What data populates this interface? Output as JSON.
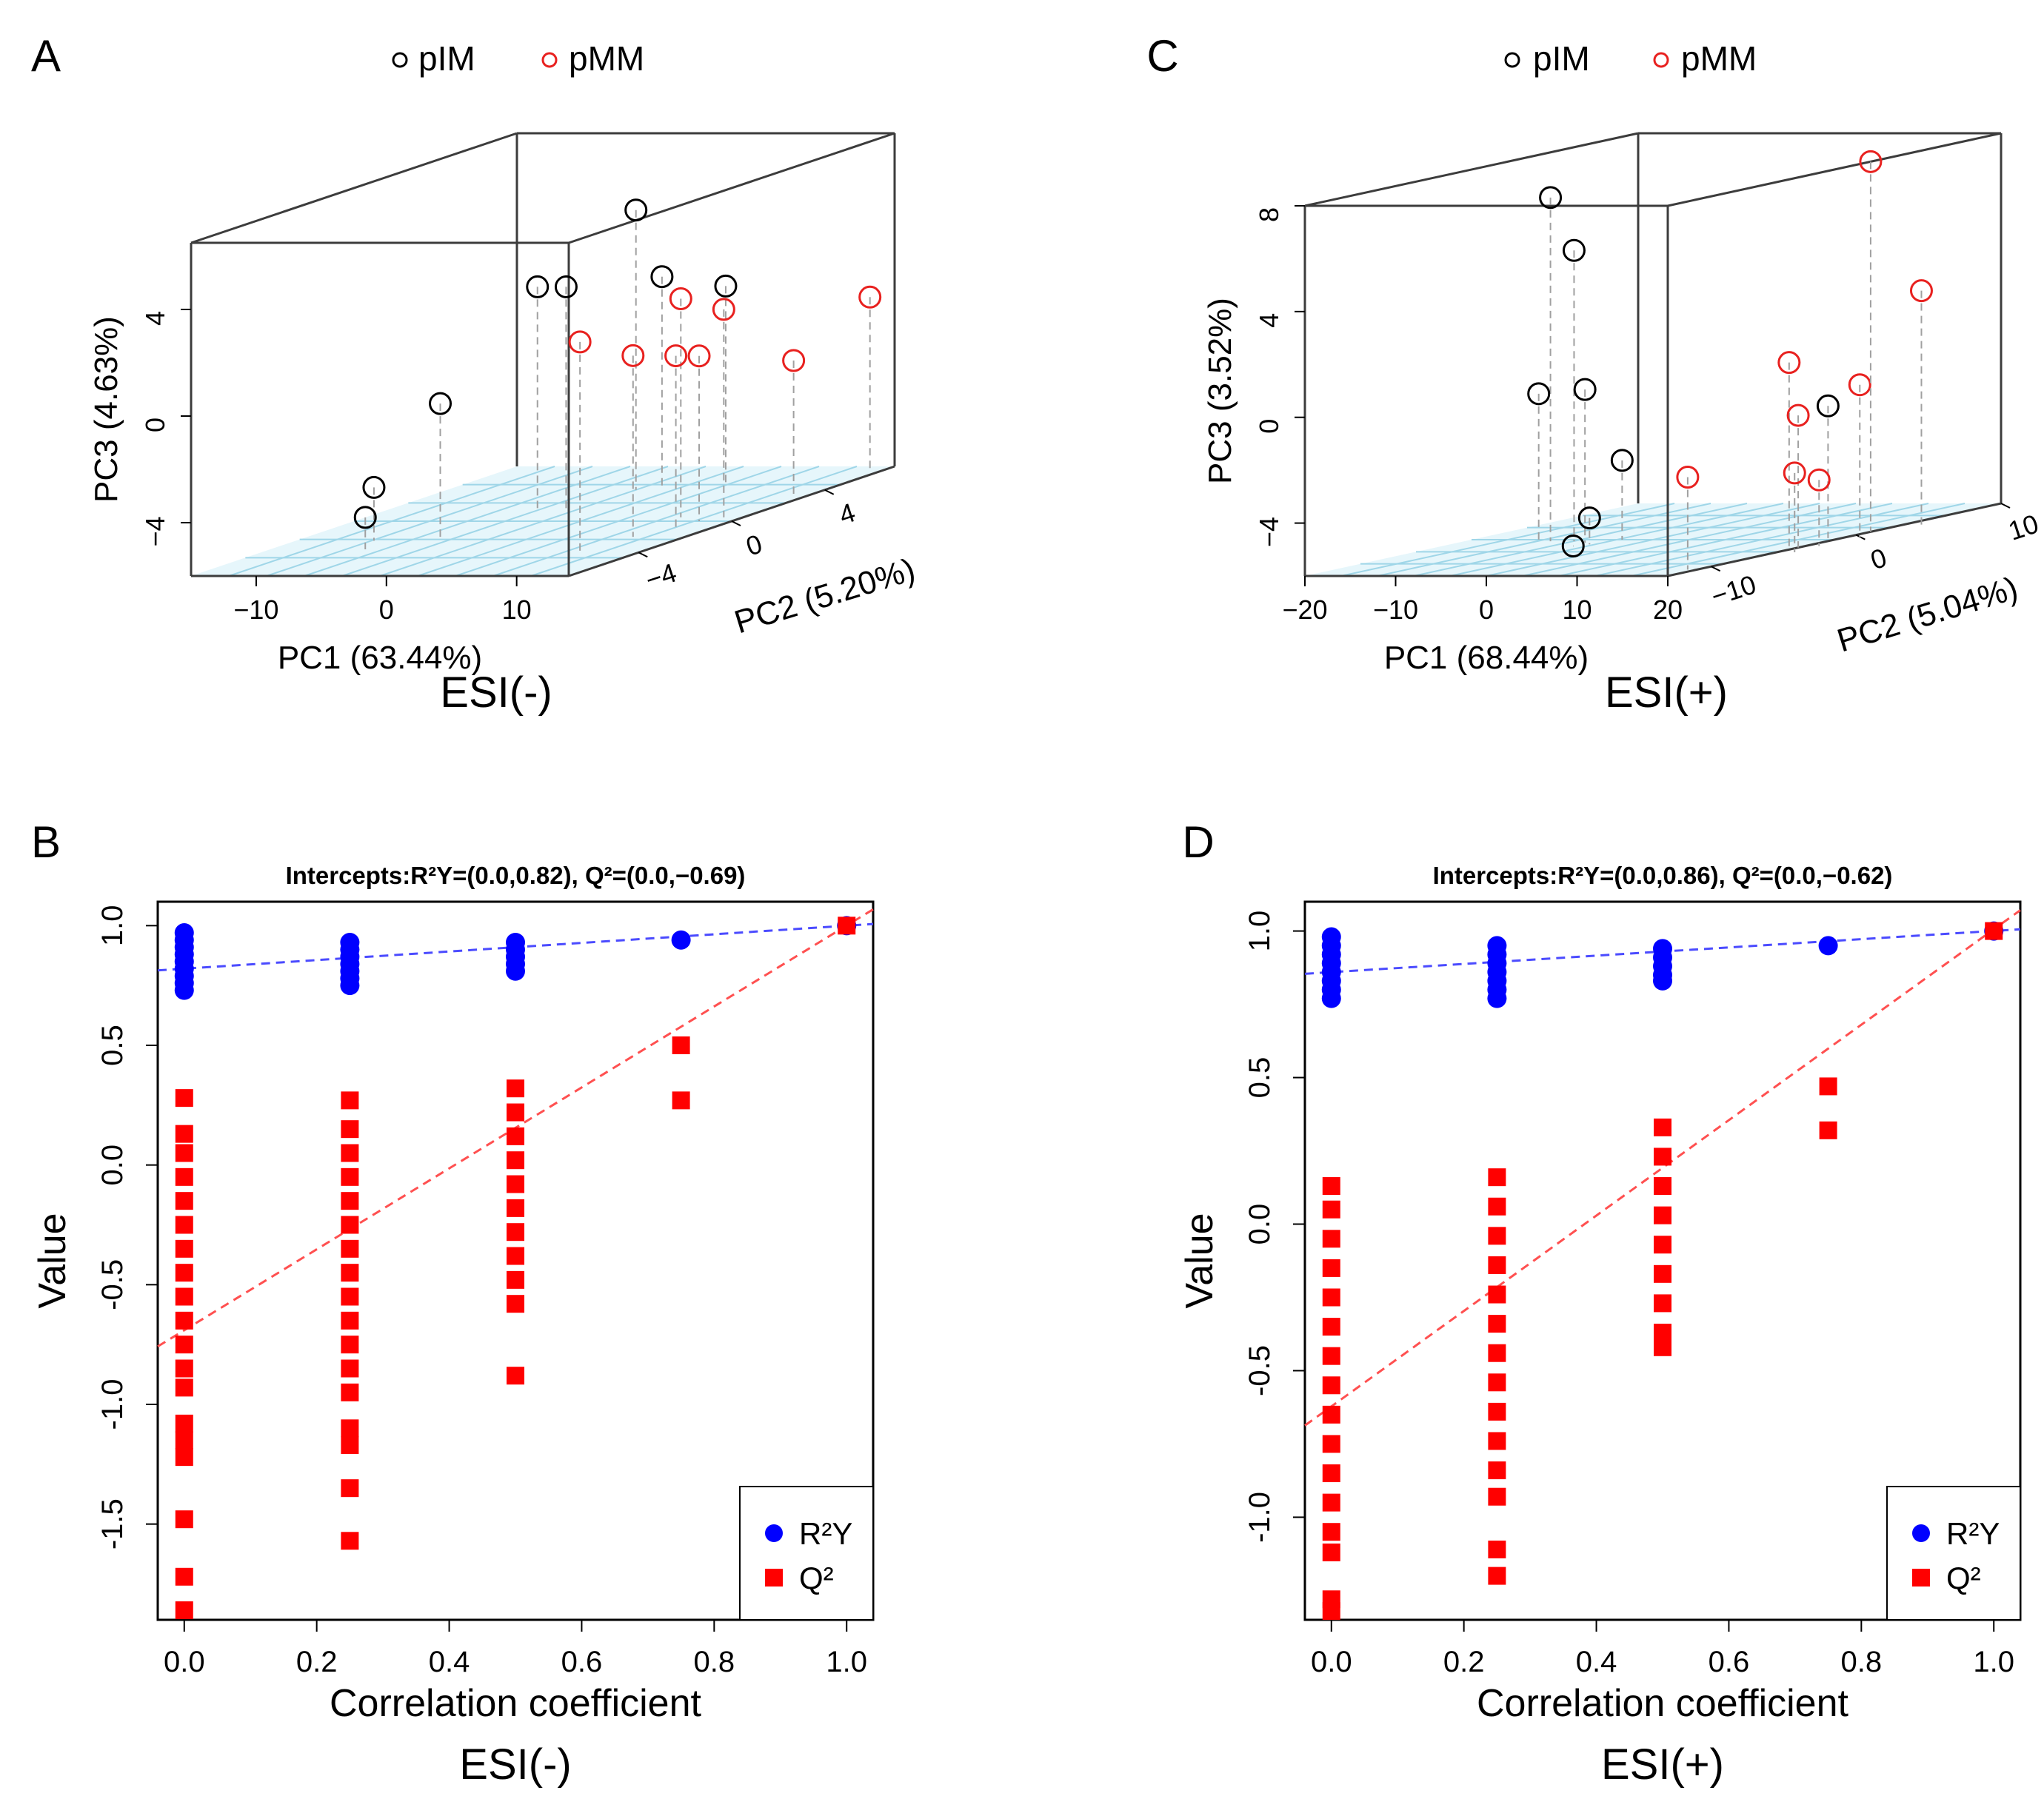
{
  "colors": {
    "pIM": "#000000",
    "pMM": "#e8211f",
    "floor_fill": "#e6f6fb",
    "floor_grid": "#9fd6e8",
    "box": "#3c3c3c",
    "dropline": "#a0a0a0",
    "R2Y": "#0000ff",
    "Q2": "#ff0000",
    "R2Y_line": "#4b4bff",
    "Q2_line": "#ff5050"
  },
  "chart_data": [
    {
      "panel_label": "A",
      "type": "scatter3d",
      "subtitle": "ESI(-)",
      "legend": [
        "pIM",
        "pMM"
      ],
      "xlabel": "PC1 (63.44%)",
      "ylabel": "PC2 (5.20%)",
      "zlabel": "PC3 (4.63%)",
      "x_ticks": [
        -10,
        0,
        10
      ],
      "y_ticks": [
        -4,
        0,
        4
      ],
      "z_ticks": [
        -4,
        0,
        4
      ],
      "xlim": [
        -15,
        14
      ],
      "ylim": [
        -7,
        7
      ],
      "zlim": [
        -6,
        6.5
      ],
      "series": [
        {
          "name": "pIM",
          "points": [
            {
              "x": -9,
              "y": -2.5,
              "z": -4.0
            },
            {
              "x": -7.7,
              "y": -3.6,
              "z": -4.8
            },
            {
              "x": -4.8,
              "y": -2.0,
              "z": -1.0
            },
            {
              "x": -2.7,
              "y": 1.0,
              "z": 2.5
            },
            {
              "x": -0.5,
              "y": 1.0,
              "z": 2.5
            },
            {
              "x": -0.5,
              "y": 4.0,
              "z": 4.5
            },
            {
              "x": 1.5,
              "y": 4.0,
              "z": 2.0
            },
            {
              "x": 5.5,
              "y": 4.5,
              "z": 1.5
            }
          ]
        },
        {
          "name": "pMM",
          "points": [
            {
              "x": 9.5,
              "y": -4.0,
              "z": 1.9
            },
            {
              "x": 9.2,
              "y": 0.5,
              "z": 2.2
            },
            {
              "x": 10,
              "y": -2.0,
              "z": 0.8
            },
            {
              "x": 11.5,
              "y": -1.0,
              "z": 0.5
            },
            {
              "x": 11.5,
              "y": 0.0,
              "z": 0.2
            },
            {
              "x": 12.5,
              "y": 0.5,
              "z": 1.8
            },
            {
              "x": 12.5,
              "y": 3.5,
              "z": -1.0
            },
            {
              "x": 13,
              "y": 6.5,
              "z": 0.5
            }
          ]
        }
      ]
    },
    {
      "panel_label": "C",
      "type": "scatter3d",
      "subtitle": "ESI(+)",
      "legend": [
        "pIM",
        "pMM"
      ],
      "xlabel": "PC1 (68.44%)",
      "ylabel": "PC2 (5.04%)",
      "zlabel": "PC3 (3.52%)",
      "x_ticks": [
        -20,
        -10,
        0,
        10,
        20
      ],
      "y_ticks": [
        -10,
        0,
        10
      ],
      "z_ticks": [
        -4,
        0,
        4,
        8
      ],
      "xlim": [
        -20,
        20
      ],
      "ylim": [
        -13,
        10
      ],
      "zlim": [
        -6,
        8
      ],
      "series": [
        {
          "name": "pIM",
          "points": [
            {
              "x": -10.5,
              "y": -2.0,
              "z": 7.0
            },
            {
              "x": -7.9,
              "y": -2.0,
              "z": 5.0
            },
            {
              "x": -10.2,
              "y": -3.0,
              "z": -0.3
            },
            {
              "x": -5.9,
              "y": -2.5,
              "z": -0.2
            },
            {
              "x": -3.4,
              "y": -1.5,
              "z": -3.0
            },
            {
              "x": -4.6,
              "y": -3.0,
              "z": -5.0
            },
            {
              "x": -5.6,
              "y": -3.5,
              "z": -6.0
            },
            {
              "x": 18.5,
              "y": -1.0,
              "z": -1.0
            }
          ]
        },
        {
          "name": "pMM",
          "points": [
            {
              "x": 19,
              "y": -11.0,
              "z": -2.5
            },
            {
              "x": 19,
              "y": -4.0,
              "z": 1.0
            },
            {
              "x": 20,
              "y": -4.0,
              "z": -1.0
            },
            {
              "x": 22,
              "y": -5.5,
              "z": -3.0
            },
            {
              "x": 21.5,
              "y": -3.5,
              "z": -3.5
            },
            {
              "x": 22,
              "y": -1.0,
              "z": -0.2
            },
            {
              "x": 24,
              "y": 2.0,
              "z": 3.0
            },
            {
              "x": 20,
              "y": 1.0,
              "z": 8.0
            }
          ]
        }
      ]
    },
    {
      "panel_label": "B",
      "type": "scatter",
      "title": "Intercepts:R²Y=(0.0,0.82), Q²=(0.0,−0.69)",
      "subtitle": "ESI(-)",
      "xlabel": "Correlation coefficient",
      "ylabel": "Value",
      "xlim": [
        -0.04,
        1.04
      ],
      "ylim": [
        -1.9,
        1.1
      ],
      "x_ticks": [
        "0.0",
        "0.2",
        "0.4",
        "0.6",
        "0.8",
        "1.0"
      ],
      "x_tick_values": [
        0,
        0.2,
        0.4,
        0.6,
        0.8,
        1.0
      ],
      "y_ticks": [
        "-1.5",
        "-1.0",
        "-0.5",
        "0.0",
        "0.5",
        "1.0"
      ],
      "y_tick_values": [
        -1.5,
        -1.0,
        -0.5,
        0.0,
        0.5,
        1.0
      ],
      "legend": [
        "R²Y",
        "Q²"
      ],
      "legend_position": "bottom-right",
      "R2Y_points": [
        [
          0,
          0.97
        ],
        [
          0,
          0.94
        ],
        [
          0,
          0.91
        ],
        [
          0,
          0.88
        ],
        [
          0,
          0.85
        ],
        [
          0,
          0.82
        ],
        [
          0,
          0.79
        ],
        [
          0,
          0.76
        ],
        [
          0,
          0.73
        ],
        [
          0.25,
          0.93
        ],
        [
          0.25,
          0.9
        ],
        [
          0.25,
          0.87
        ],
        [
          0.25,
          0.84
        ],
        [
          0.25,
          0.81
        ],
        [
          0.25,
          0.78
        ],
        [
          0.25,
          0.75
        ],
        [
          0.5,
          0.93
        ],
        [
          0.5,
          0.9
        ],
        [
          0.5,
          0.87
        ],
        [
          0.5,
          0.84
        ],
        [
          0.5,
          0.81
        ],
        [
          0.75,
          0.94
        ],
        [
          1.0,
          1.0
        ]
      ],
      "Q2_points": [
        [
          0,
          0.28
        ],
        [
          0,
          0.13
        ],
        [
          0,
          0.05
        ],
        [
          0,
          -0.05
        ],
        [
          0,
          -0.15
        ],
        [
          0,
          -0.25
        ],
        [
          0,
          -0.35
        ],
        [
          0,
          -0.45
        ],
        [
          0,
          -0.55
        ],
        [
          0,
          -0.65
        ],
        [
          0,
          -0.75
        ],
        [
          0,
          -0.85
        ],
        [
          0,
          -0.93
        ],
        [
          0,
          -1.08
        ],
        [
          0,
          -1.15
        ],
        [
          0,
          -1.22
        ],
        [
          0,
          -1.48
        ],
        [
          0,
          -1.72
        ],
        [
          0,
          -1.86
        ],
        [
          0.25,
          0.27
        ],
        [
          0.25,
          0.15
        ],
        [
          0.25,
          0.05
        ],
        [
          0.25,
          -0.05
        ],
        [
          0.25,
          -0.15
        ],
        [
          0.25,
          -0.25
        ],
        [
          0.25,
          -0.35
        ],
        [
          0.25,
          -0.45
        ],
        [
          0.25,
          -0.55
        ],
        [
          0.25,
          -0.65
        ],
        [
          0.25,
          -0.75
        ],
        [
          0.25,
          -0.85
        ],
        [
          0.25,
          -0.95
        ],
        [
          0.25,
          -1.1
        ],
        [
          0.25,
          -1.17
        ],
        [
          0.25,
          -1.35
        ],
        [
          0.25,
          -1.57
        ],
        [
          0.5,
          0.32
        ],
        [
          0.5,
          0.22
        ],
        [
          0.5,
          0.12
        ],
        [
          0.5,
          0.02
        ],
        [
          0.5,
          -0.08
        ],
        [
          0.5,
          -0.18
        ],
        [
          0.5,
          -0.28
        ],
        [
          0.5,
          -0.38
        ],
        [
          0.5,
          -0.48
        ],
        [
          0.5,
          -0.58
        ],
        [
          0.5,
          -0.88
        ],
        [
          0.75,
          0.5
        ],
        [
          0.75,
          0.27
        ],
        [
          1.0,
          1.0
        ]
      ],
      "R2Y_line": [
        [
          -0.04,
          0.813
        ],
        [
          1.04,
          1.007
        ]
      ],
      "Q2_line": [
        [
          -0.04,
          -0.758
        ],
        [
          1.04,
          1.068
        ]
      ]
    },
    {
      "panel_label": "D",
      "type": "scatter",
      "title": "Intercepts:R²Y=(0.0,0.86), Q²=(0.0,−0.62)",
      "subtitle": "ESI(+)",
      "xlabel": "Correlation coefficient",
      "ylabel": "Value",
      "xlim": [
        -0.04,
        1.04
      ],
      "ylim": [
        -1.35,
        1.1
      ],
      "x_ticks": [
        "0.0",
        "0.2",
        "0.4",
        "0.6",
        "0.8",
        "1.0"
      ],
      "x_tick_values": [
        0,
        0.2,
        0.4,
        0.6,
        0.8,
        1.0
      ],
      "y_ticks": [
        "-1.0",
        "-0.5",
        "0.0",
        "0.5",
        "1.0"
      ],
      "y_tick_values": [
        -1.0,
        -0.5,
        0.0,
        0.5,
        1.0
      ],
      "legend": [
        "R²Y",
        "Q²"
      ],
      "legend_position": "bottom-right",
      "R2Y_points": [
        [
          0,
          0.98
        ],
        [
          0,
          0.95
        ],
        [
          0,
          0.92
        ],
        [
          0,
          0.89
        ],
        [
          0,
          0.86
        ],
        [
          0,
          0.83
        ],
        [
          0,
          0.8
        ],
        [
          0,
          0.77
        ],
        [
          0.25,
          0.95
        ],
        [
          0.25,
          0.92
        ],
        [
          0.25,
          0.89
        ],
        [
          0.25,
          0.86
        ],
        [
          0.25,
          0.83
        ],
        [
          0.25,
          0.8
        ],
        [
          0.25,
          0.77
        ],
        [
          0.5,
          0.94
        ],
        [
          0.5,
          0.91
        ],
        [
          0.5,
          0.88
        ],
        [
          0.5,
          0.85
        ],
        [
          0.5,
          0.83
        ],
        [
          0.75,
          0.95
        ],
        [
          1.0,
          1.0
        ]
      ],
      "Q2_points": [
        [
          0,
          0.13
        ],
        [
          0,
          0.05
        ],
        [
          0,
          -0.05
        ],
        [
          0,
          -0.15
        ],
        [
          0,
          -0.25
        ],
        [
          0,
          -0.35
        ],
        [
          0,
          -0.45
        ],
        [
          0,
          -0.55
        ],
        [
          0,
          -0.65
        ],
        [
          0,
          -0.75
        ],
        [
          0,
          -0.85
        ],
        [
          0,
          -0.95
        ],
        [
          0,
          -1.05
        ],
        [
          0,
          -1.12
        ],
        [
          0,
          -1.28
        ],
        [
          0,
          -1.32
        ],
        [
          0.25,
          0.16
        ],
        [
          0.25,
          0.06
        ],
        [
          0.25,
          -0.04
        ],
        [
          0.25,
          -0.14
        ],
        [
          0.25,
          -0.24
        ],
        [
          0.25,
          -0.34
        ],
        [
          0.25,
          -0.44
        ],
        [
          0.25,
          -0.54
        ],
        [
          0.25,
          -0.64
        ],
        [
          0.25,
          -0.74
        ],
        [
          0.25,
          -0.84
        ],
        [
          0.25,
          -0.93
        ],
        [
          0.25,
          -1.11
        ],
        [
          0.25,
          -1.2
        ],
        [
          0.5,
          0.33
        ],
        [
          0.5,
          0.23
        ],
        [
          0.5,
          0.13
        ],
        [
          0.5,
          0.03
        ],
        [
          0.5,
          -0.07
        ],
        [
          0.5,
          -0.17
        ],
        [
          0.5,
          -0.27
        ],
        [
          0.5,
          -0.37
        ],
        [
          0.5,
          -0.42
        ],
        [
          0.75,
          0.47
        ],
        [
          0.75,
          0.32
        ],
        [
          1.0,
          1.0
        ]
      ],
      "R2Y_line": [
        [
          -0.04,
          0.854
        ],
        [
          1.04,
          1.006
        ]
      ],
      "Q2_line": [
        [
          -0.04,
          -0.687
        ],
        [
          1.04,
          1.071
        ]
      ]
    }
  ]
}
